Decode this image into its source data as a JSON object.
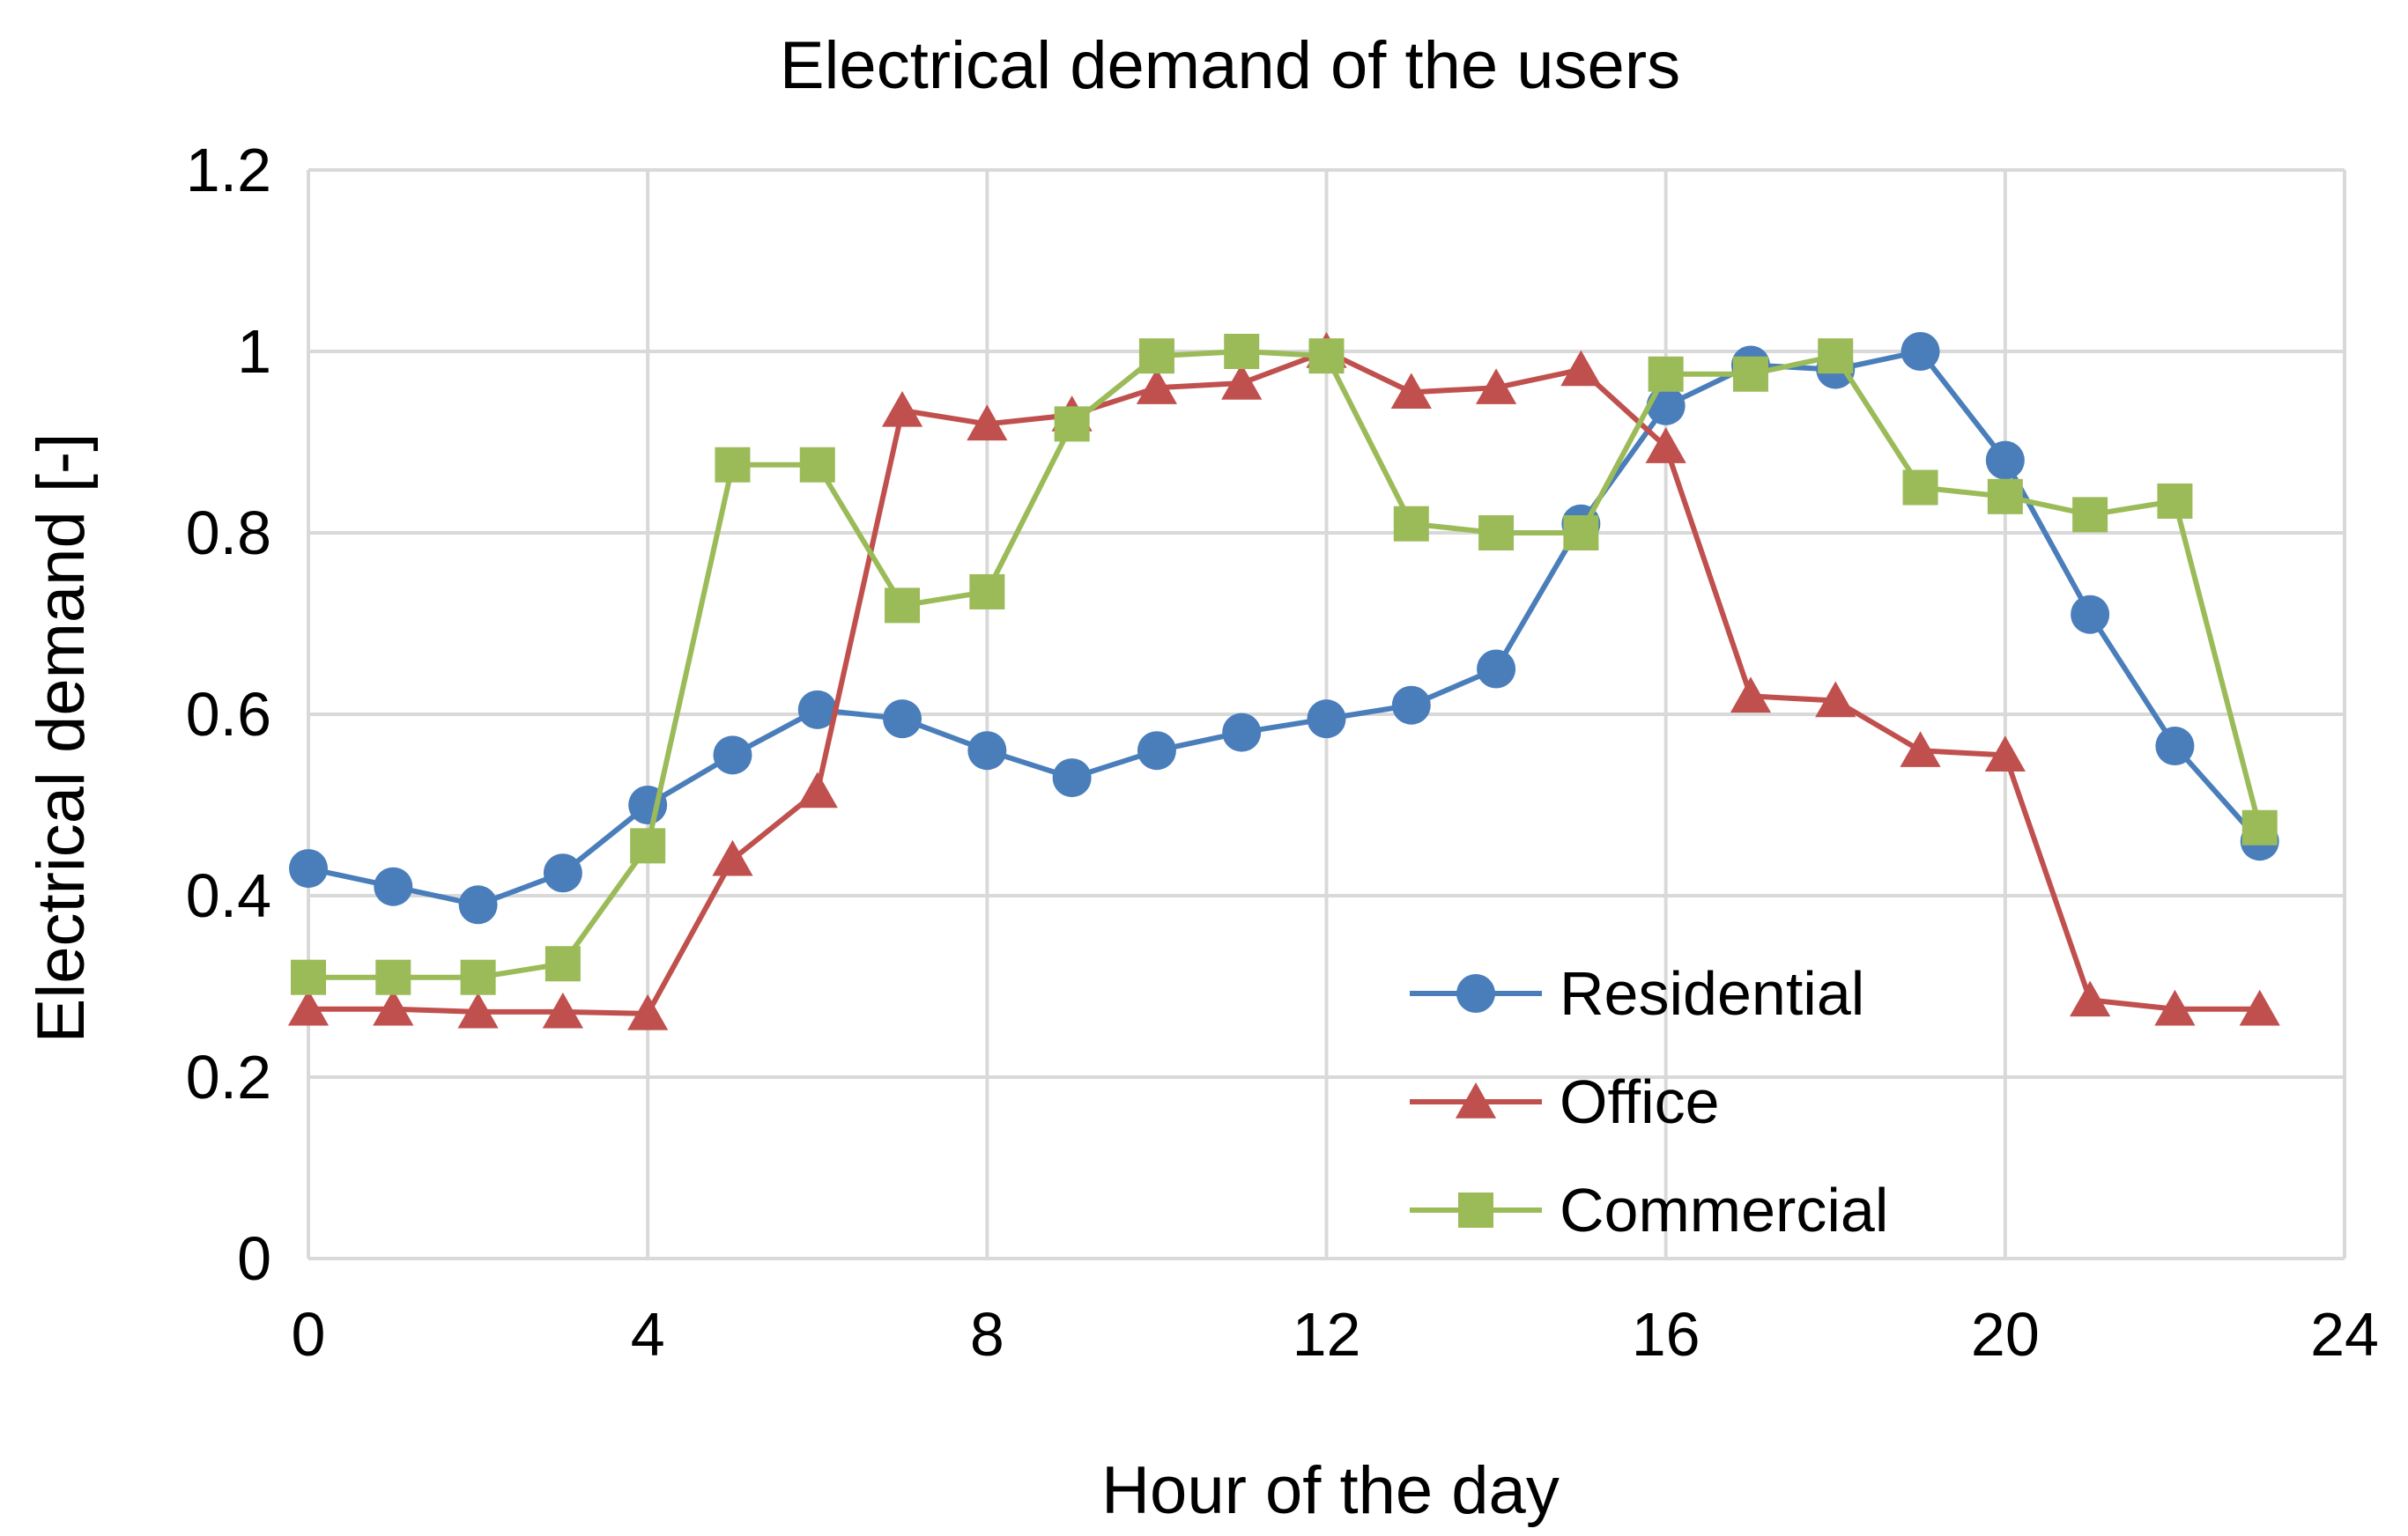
{
  "chart_data": {
    "type": "line",
    "title": "Electrical demand of the users",
    "xlabel": "Hour of the day",
    "ylabel": "Electrical demand  [-]",
    "xlim": [
      0,
      24
    ],
    "ylim": [
      0,
      1.2
    ],
    "xticks": [
      "0",
      "4",
      "8",
      "12",
      "16",
      "20",
      "24"
    ],
    "yticks": [
      "0",
      "0.2",
      "0.4",
      "0.6",
      "0.8",
      "1",
      "1.2"
    ],
    "grid": true,
    "legend_position": "bottom-right",
    "x": [
      0,
      1,
      2,
      3,
      4,
      5,
      6,
      7,
      8,
      9,
      10,
      11,
      12,
      13,
      14,
      15,
      16,
      17,
      18,
      19,
      20,
      21,
      22,
      23
    ],
    "series": [
      {
        "name": "Residential",
        "color": "#4a7ebb",
        "marker": "circle",
        "values": [
          0.43,
          0.41,
          0.39,
          0.425,
          0.5,
          0.555,
          0.605,
          0.595,
          0.56,
          0.53,
          0.56,
          0.58,
          0.595,
          0.61,
          0.65,
          0.81,
          0.94,
          0.985,
          0.98,
          1.0,
          0.88,
          0.71,
          0.565,
          0.46
        ]
      },
      {
        "name": "Office",
        "color": "#c0504d",
        "marker": "triangle",
        "values": [
          0.275,
          0.275,
          0.272,
          0.272,
          0.27,
          0.44,
          0.515,
          0.935,
          0.92,
          0.93,
          0.96,
          0.965,
          1.0,
          0.955,
          0.96,
          0.98,
          0.895,
          0.62,
          0.615,
          0.56,
          0.555,
          0.285,
          0.275,
          0.275
        ]
      },
      {
        "name": "Commercial",
        "color": "#9bbb59",
        "marker": "square",
        "values": [
          0.31,
          0.31,
          0.31,
          0.325,
          0.455,
          0.875,
          0.875,
          0.72,
          0.735,
          0.92,
          0.995,
          1.0,
          0.995,
          0.81,
          0.8,
          0.8,
          0.975,
          0.975,
          0.995,
          0.85,
          0.84,
          0.82,
          0.835,
          0.475
        ]
      }
    ]
  }
}
